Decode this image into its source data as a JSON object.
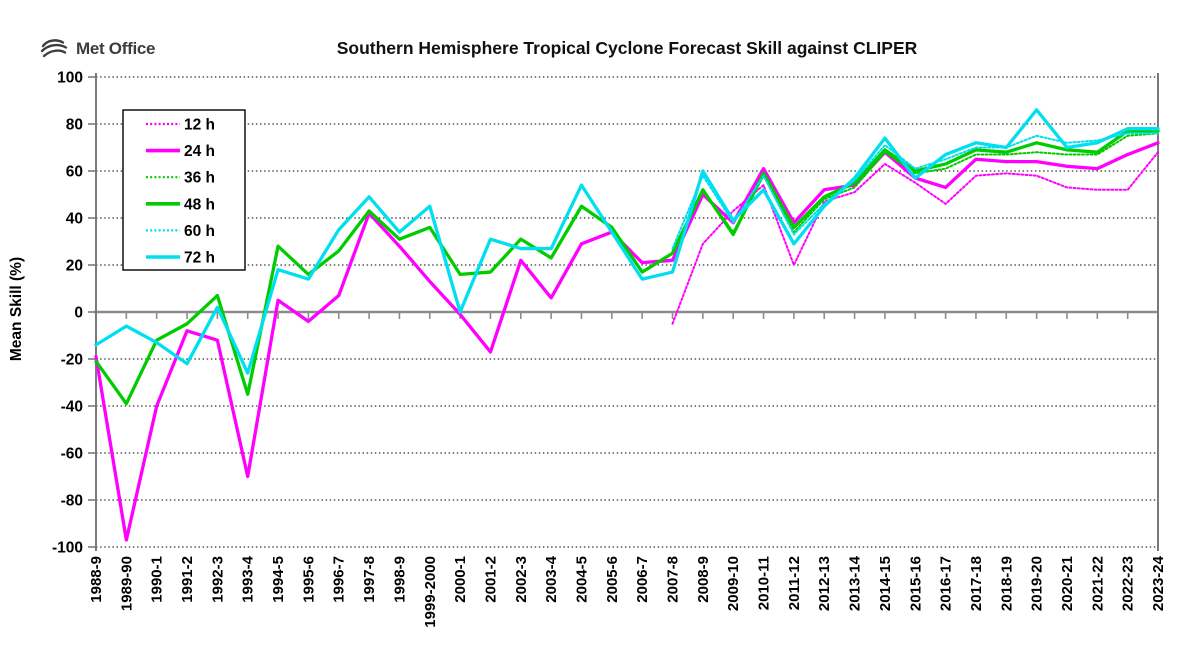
{
  "logo": {
    "text": "Met Office"
  },
  "header": {
    "title": "Southern Hemisphere Tropical Cyclone Forecast Skill against CLIPER"
  },
  "chart_data": {
    "type": "line",
    "title": "Southern Hemisphere Tropical Cyclone Forecast Skill against CLIPER",
    "xlabel": "",
    "ylabel": "Mean Skill (%)",
    "ylim": [
      -100,
      100
    ],
    "yticks": [
      100,
      80,
      60,
      40,
      20,
      0,
      -20,
      -40,
      -60,
      -80,
      -100
    ],
    "grid": "dashed-horizontal",
    "legend_position": "top-left-inside",
    "axis_color": "#7a7a7a",
    "zero_line_color": "#8c8c8c",
    "categories": [
      "1988-9",
      "1989-90",
      "1990-1",
      "1991-2",
      "1992-3",
      "1993-4",
      "1994-5",
      "1995-6",
      "1996-7",
      "1997-8",
      "1998-9",
      "1999-2000",
      "2000-1",
      "2001-2",
      "2002-3",
      "2003-4",
      "2004-5",
      "2005-6",
      "2006-7",
      "2007-8",
      "2008-9",
      "2009-10",
      "2010-11",
      "2011-12",
      "2012-13",
      "2013-14",
      "2014-15",
      "2015-16",
      "2016-17",
      "2017-18",
      "2018-19",
      "2019-20",
      "2020-21",
      "2021-22",
      "2022-23",
      "2023-24"
    ],
    "series": [
      {
        "name": "12 h",
        "color": "#FF00FF",
        "style": "dotted",
        "values": [
          null,
          null,
          null,
          null,
          null,
          null,
          null,
          null,
          null,
          null,
          null,
          null,
          null,
          null,
          null,
          null,
          null,
          null,
          null,
          -5,
          29,
          43,
          54,
          20,
          47,
          51,
          63,
          55,
          46,
          58,
          59,
          58,
          53,
          52,
          52,
          68
        ]
      },
      {
        "name": "24 h",
        "color": "#FF00FF",
        "style": "solid",
        "values": [
          -19,
          -97,
          -40,
          -8,
          -12,
          -70,
          5,
          -4,
          7,
          42,
          28,
          13,
          -1,
          -17,
          22,
          6,
          29,
          34,
          21,
          22,
          50,
          38,
          61,
          38,
          52,
          54,
          68,
          57,
          53,
          65,
          64,
          64,
          62,
          61,
          67,
          72
        ]
      },
      {
        "name": "36 h",
        "color": "#00CC00",
        "style": "dotted",
        "values": [
          null,
          null,
          null,
          null,
          null,
          null,
          null,
          null,
          null,
          null,
          null,
          null,
          null,
          null,
          null,
          null,
          null,
          null,
          null,
          26,
          52,
          34,
          58,
          34,
          48,
          53,
          68,
          59,
          61,
          67,
          67,
          68,
          67,
          67,
          75,
          76
        ]
      },
      {
        "name": "48 h",
        "color": "#00CC00",
        "style": "solid",
        "values": [
          -21,
          -39,
          -12,
          -5,
          7,
          -35,
          28,
          16,
          26,
          43,
          31,
          36,
          16,
          17,
          31,
          23,
          45,
          36,
          17,
          25,
          52,
          33,
          59,
          36,
          49,
          55,
          69,
          60,
          63,
          69,
          68,
          72,
          69,
          68,
          77,
          77
        ]
      },
      {
        "name": "60 h",
        "color": "#00DFF0",
        "style": "dotted",
        "values": [
          null,
          null,
          null,
          null,
          null,
          null,
          null,
          null,
          null,
          null,
          null,
          null,
          null,
          null,
          null,
          null,
          null,
          null,
          null,
          27,
          58,
          38,
          58,
          33,
          46,
          56,
          71,
          61,
          65,
          70,
          70,
          75,
          72,
          73,
          76,
          76
        ]
      },
      {
        "name": "72 h",
        "color": "#00DFF0",
        "style": "solid",
        "values": [
          -14,
          -6,
          -13,
          -22,
          2,
          -26,
          18,
          14,
          35,
          49,
          34,
          45,
          0,
          31,
          27,
          27,
          54,
          34,
          14,
          17,
          60,
          39,
          52,
          29,
          45,
          57,
          74,
          57,
          67,
          72,
          70,
          86,
          70,
          72,
          78,
          78
        ]
      }
    ]
  }
}
